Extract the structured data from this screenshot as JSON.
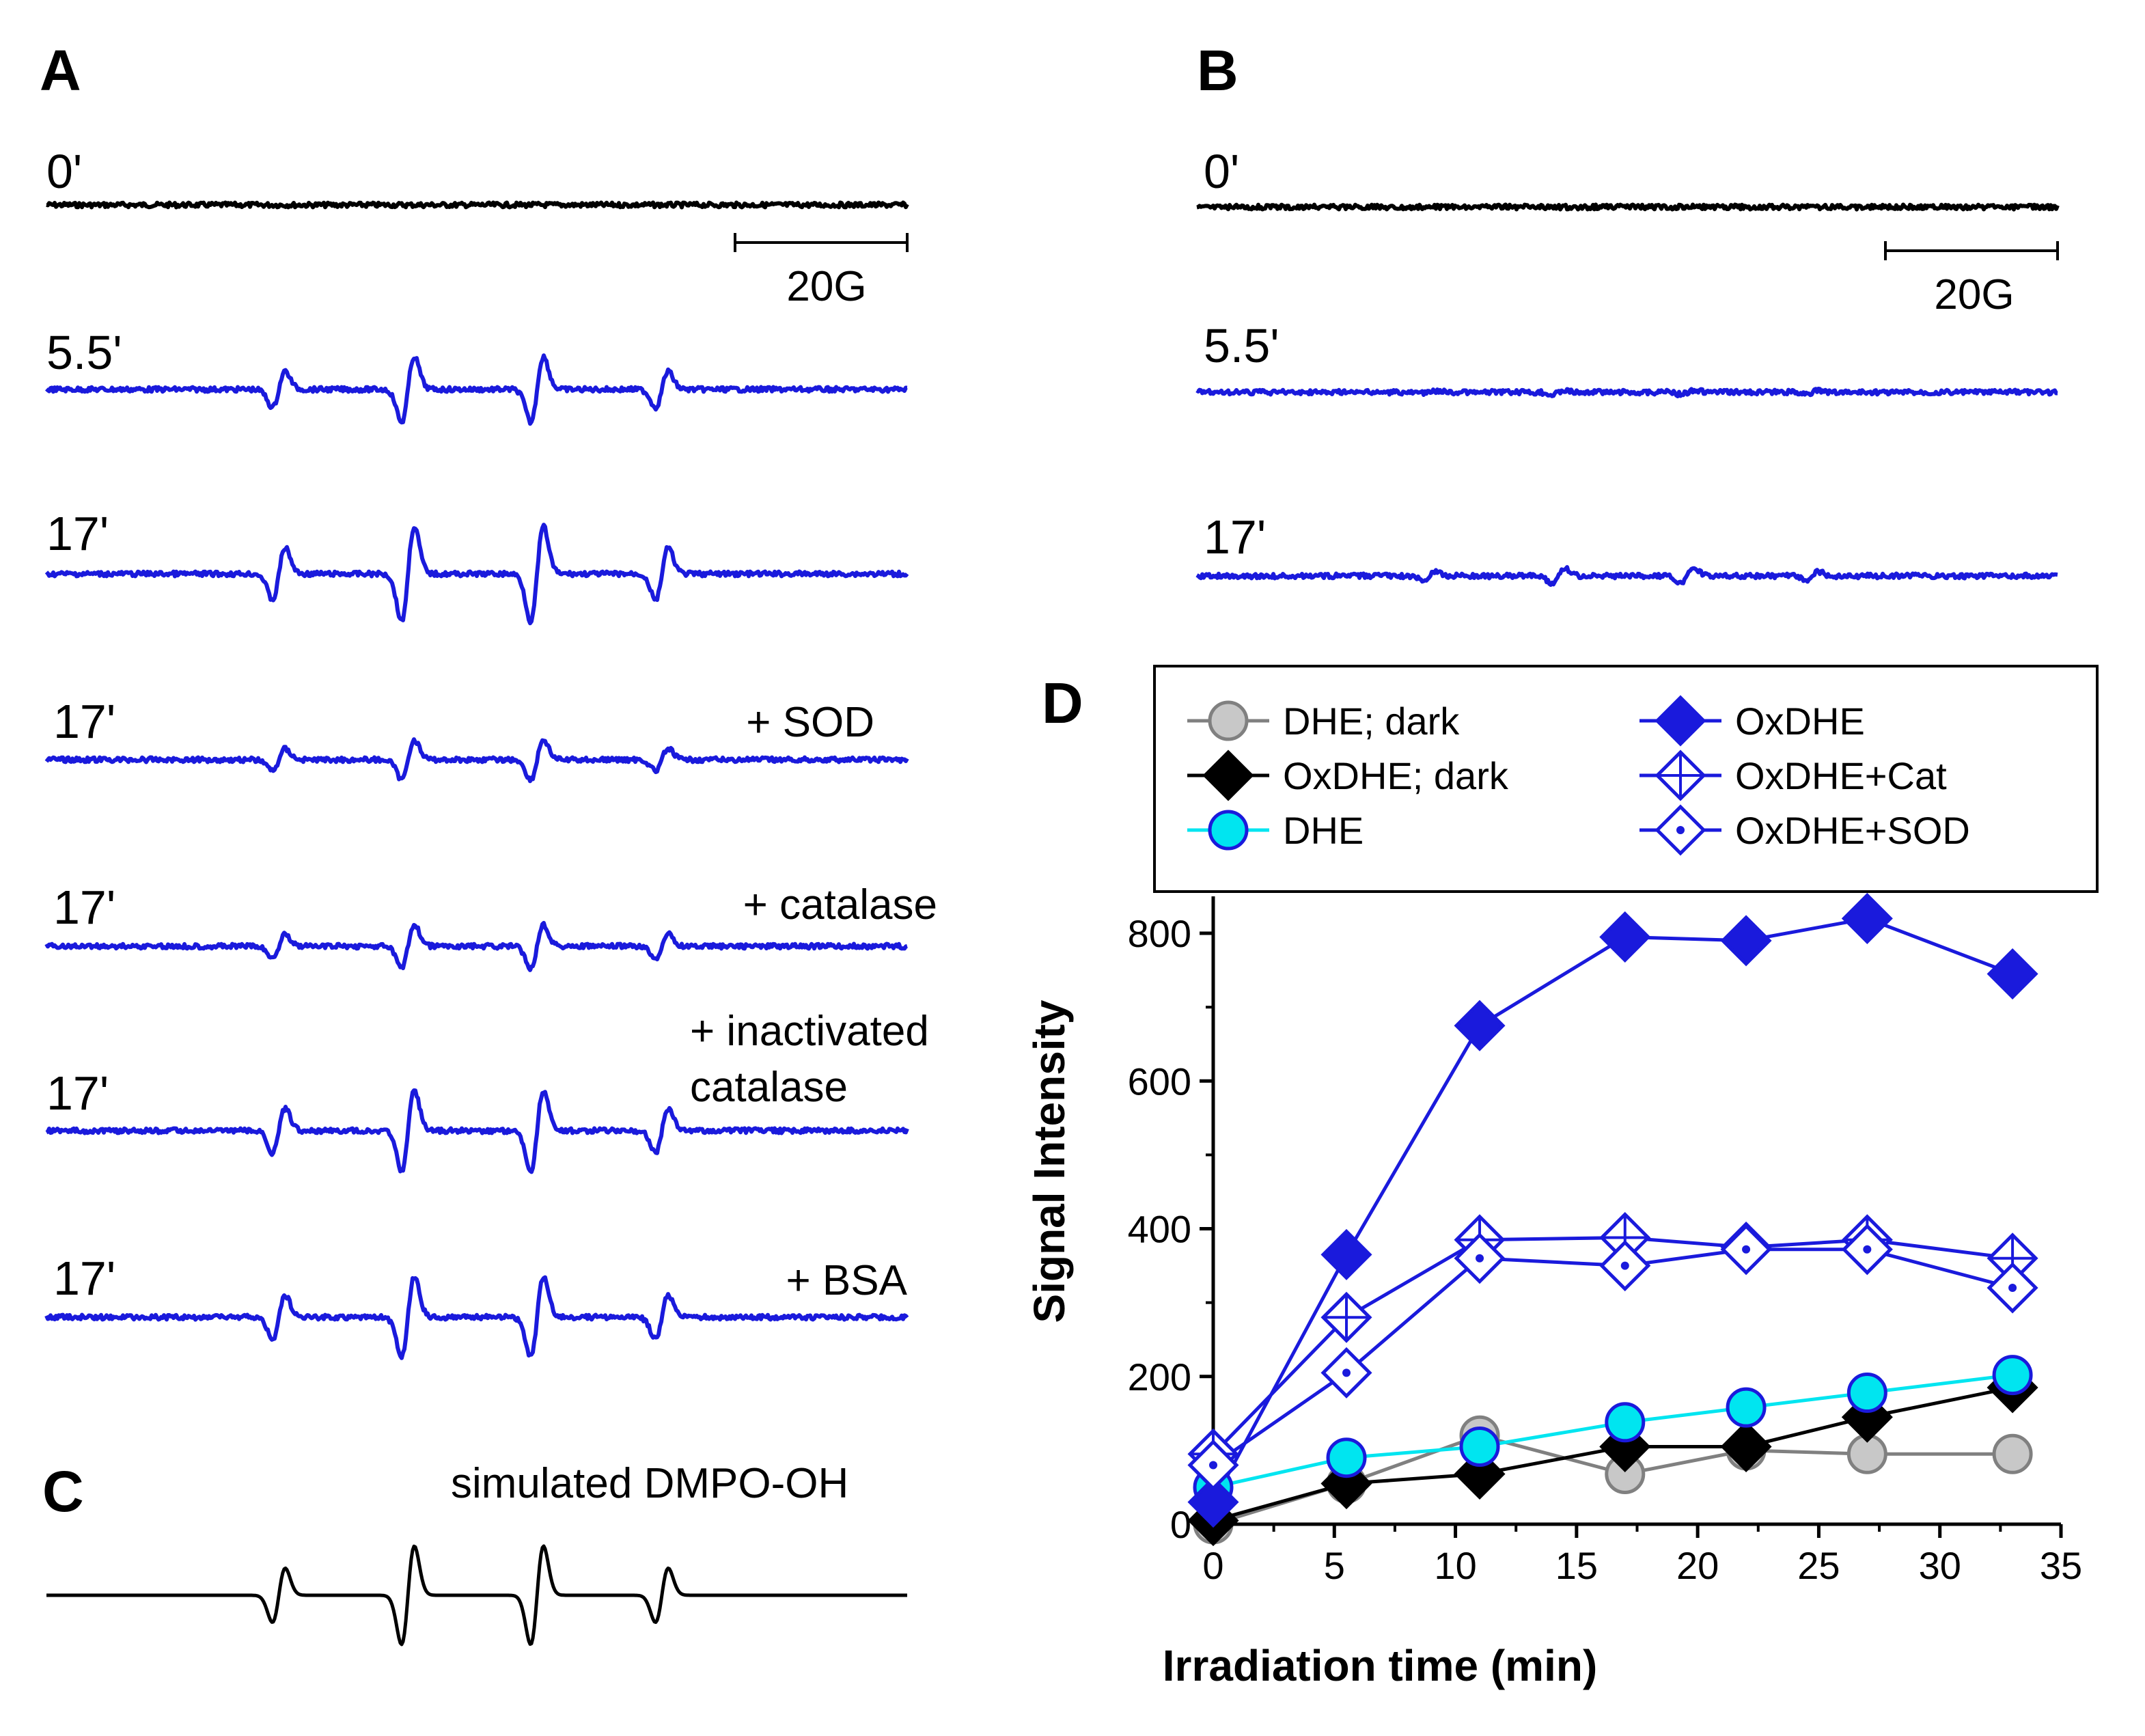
{
  "colors": {
    "blue": "#1a1adc",
    "black": "#000000",
    "gray_fill": "#c8c8c8",
    "gray_line": "#808080",
    "cyan": "#00e5f0",
    "white": "#ffffff"
  },
  "panel_a": {
    "label": "A",
    "scale_label": "20G",
    "traces": [
      {
        "time": "0'",
        "note": "",
        "amp": 0,
        "color": "black"
      },
      {
        "time": "5.5'",
        "note": "",
        "amp": 0.9,
        "color": "blue"
      },
      {
        "time": "17'",
        "note": "",
        "amp": 1.3,
        "color": "blue"
      },
      {
        "time": "17'",
        "note": "+ SOD",
        "amp": 0.55,
        "color": "blue"
      },
      {
        "time": "17'",
        "note": "+ catalase",
        "amp": 0.6,
        "color": "blue"
      },
      {
        "time": "17'",
        "note": "+ inactivated catalase",
        "amp": 1.1,
        "color": "blue"
      },
      {
        "time": "17'",
        "note": "+ BSA",
        "amp": 1.1,
        "color": "blue"
      }
    ]
  },
  "panel_b": {
    "label": "B",
    "scale_label": "20G",
    "traces": [
      {
        "time": "0'",
        "amp": 0,
        "color": "black"
      },
      {
        "time": "5.5'",
        "amp": 0.06,
        "color": "blue"
      },
      {
        "time": "17'",
        "amp": 0.2,
        "color": "blue"
      }
    ]
  },
  "panel_c": {
    "label": "C",
    "title": "simulated DMPO-OH"
  },
  "panel_d": {
    "label": "D"
  },
  "chart_data": {
    "type": "line",
    "xlabel": "Irradiation time (min)",
    "ylabel": "Signal Intensity",
    "xlim": [
      0,
      35
    ],
    "ylim": [
      0,
      850
    ],
    "xticks": [
      0,
      5,
      10,
      15,
      20,
      25,
      30,
      35
    ],
    "yticks": [
      0,
      200,
      400,
      600,
      800
    ],
    "legend_position": "top",
    "series": [
      {
        "name": "DHE; dark",
        "marker": "circle",
        "fill": "gray_fill",
        "stroke": "gray_line",
        "x": [
          0,
          5.5,
          11,
          17,
          22,
          27,
          33
        ],
        "y": [
          0,
          55,
          120,
          68,
          100,
          95,
          95
        ]
      },
      {
        "name": "OxDHE; dark",
        "marker": "diamond",
        "fill": "black",
        "stroke": "black",
        "x": [
          0,
          5.5,
          11,
          17,
          22,
          27,
          33
        ],
        "y": [
          5,
          55,
          68,
          105,
          105,
          145,
          185
        ]
      },
      {
        "name": "DHE",
        "marker": "circle",
        "fill": "cyan",
        "stroke": "blue",
        "line": "cyan",
        "x": [
          0,
          5.5,
          11,
          17,
          22,
          27,
          33
        ],
        "y": [
          50,
          90,
          105,
          138,
          158,
          178,
          202
        ]
      },
      {
        "name": "OxDHE",
        "marker": "diamond",
        "fill": "blue",
        "stroke": "blue",
        "x": [
          0,
          5.5,
          11,
          17,
          22,
          27,
          33
        ],
        "y": [
          30,
          365,
          675,
          795,
          790,
          820,
          745
        ]
      },
      {
        "name": "OxDHE+Cat",
        "marker": "diamond-cross",
        "fill": "white",
        "stroke": "blue",
        "x": [
          0,
          5.5,
          11,
          17,
          22,
          27,
          33
        ],
        "y": [
          95,
          280,
          385,
          388,
          375,
          385,
          360
        ]
      },
      {
        "name": "OxDHE+SOD",
        "marker": "diamond-dot",
        "fill": "white",
        "stroke": "blue",
        "x": [
          0,
          5.5,
          11,
          17,
          22,
          27,
          33
        ],
        "y": [
          80,
          205,
          360,
          350,
          372,
          372,
          320
        ]
      }
    ]
  }
}
